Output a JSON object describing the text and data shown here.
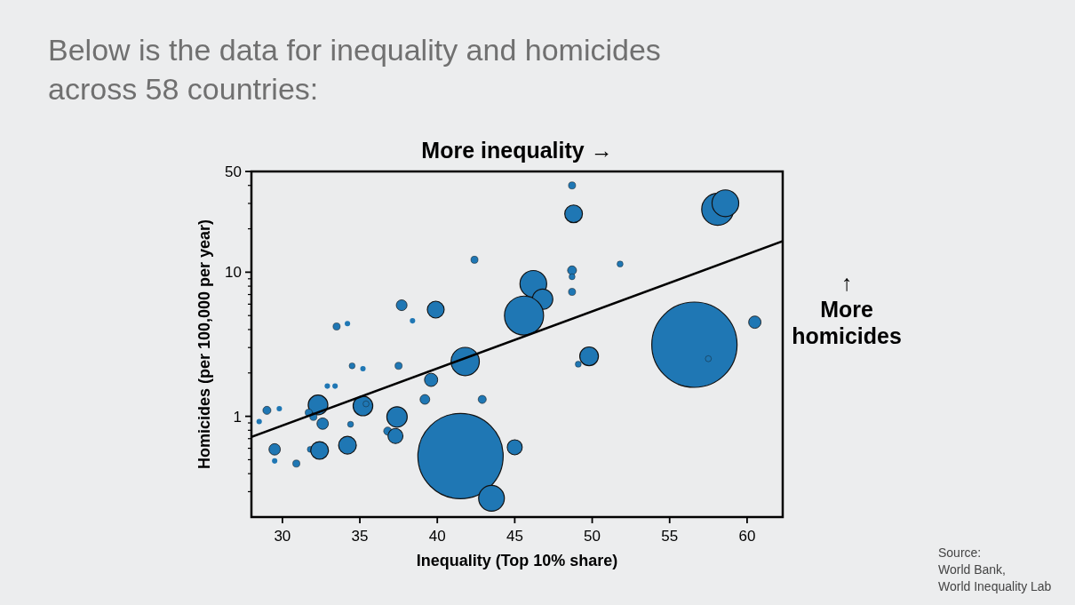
{
  "chart_data": {
    "type": "bubble",
    "title": "Below is the data for inequality and homicides\nacross 58 countries:",
    "xlabel": "Inequality (Top 10% share)",
    "ylabel": "Homicides (per 100,000 per year)",
    "annotations": [
      "More inequality →",
      "↑\nMore\nhomicides",
      "Source:\nWorld Bank,\nWorld Inequality Lab"
    ],
    "log": "y",
    "grid": false,
    "marker": "circle",
    "xlim": [
      28,
      62.3
    ],
    "xticks": [
      30,
      35,
      40,
      45,
      50,
      55,
      60
    ],
    "ylim": [
      0.2,
      50
    ],
    "yticks": [
      {
        "value": 0.3,
        "label": null
      },
      {
        "value": 0.4,
        "label": null
      },
      {
        "value": 0.5,
        "label": null
      },
      {
        "value": 0.6,
        "label": null
      },
      {
        "value": 0.7,
        "label": null
      },
      {
        "value": 0.8,
        "label": null
      },
      {
        "value": 0.9,
        "label": null
      },
      1,
      {
        "value": 2,
        "label": null
      },
      {
        "value": 3,
        "label": null
      },
      {
        "value": 4,
        "label": null
      },
      {
        "value": 5,
        "label": null
      },
      {
        "value": 6,
        "label": null
      },
      {
        "value": 7,
        "label": null
      },
      {
        "value": 8,
        "label": null
      },
      {
        "value": 9,
        "label": null
      },
      10,
      {
        "value": 20,
        "label": null
      },
      {
        "value": 30,
        "label": null
      },
      {
        "value": 40,
        "label": null
      },
      50
    ],
    "series": [
      {
        "color": "#1f77b4",
        "x": [
          42.4,
          37.7,
          38.4,
          39.9,
          33.5,
          34.2,
          48.7,
          48.8,
          58.1,
          58.6,
          51.8,
          48.7,
          48.7,
          48.7,
          46.2,
          46.8,
          45.6,
          60.5,
          34.5,
          35.2,
          37.5,
          41.8,
          39.6,
          32.9,
          33.4,
          39.2,
          42.9,
          32.3,
          35.2,
          35.4,
          29.0,
          29.8,
          28.5,
          31.7,
          32.0,
          32.6,
          34.4,
          37.4,
          36.8,
          37.3,
          29.5,
          29.5,
          30.9,
          31.8,
          32.4,
          34.2,
          41.5,
          43.5,
          45.0,
          49.8,
          49.1,
          56.6,
          57.5
        ],
        "values": [
          12.2,
          5.9,
          4.6,
          5.5,
          4.2,
          4.4,
          40,
          25.4,
          27.3,
          30.1,
          11.4,
          10.3,
          9.3,
          7.3,
          8.3,
          6.5,
          5.0,
          4.5,
          2.24,
          2.14,
          2.24,
          2.4,
          1.79,
          1.62,
          1.62,
          1.31,
          1.31,
          1.2,
          1.18,
          1.22,
          1.1,
          1.13,
          0.92,
          1.06,
          0.99,
          0.89,
          0.88,
          0.99,
          0.79,
          0.73,
          0.59,
          0.49,
          0.47,
          0.59,
          0.58,
          0.63,
          0.53,
          0.27,
          0.61,
          2.61,
          2.3,
          3.14,
          2.51
        ],
        "sizes": [
          0.007,
          0.016,
          0.004,
          0.039,
          0.007,
          0.004,
          0.007,
          0.043,
          0.14,
          0.098,
          0.005,
          0.011,
          0.005,
          0.007,
          0.098,
          0.057,
          0.21,
          0.021,
          0.005,
          0.004,
          0.007,
          0.11,
          0.024,
          0.004,
          0.004,
          0.013,
          0.009,
          0.053,
          0.053,
          0.005,
          0.009,
          0.004,
          0.004,
          0.007,
          0.007,
          0.018,
          0.005,
          0.057,
          0.009,
          0.031,
          0.018,
          0.004,
          0.007,
          0.005,
          0.043,
          0.043,
          1,
          0.091,
          0.031,
          0.048,
          0.005,
          1,
          0.005
        ]
      },
      {
        "type": "line",
        "color": "#000000",
        "x": [
          28,
          62.3
        ],
        "values": [
          0.72,
          16.4
        ],
        "line_style": "solid",
        "marker": "none"
      }
    ]
  }
}
